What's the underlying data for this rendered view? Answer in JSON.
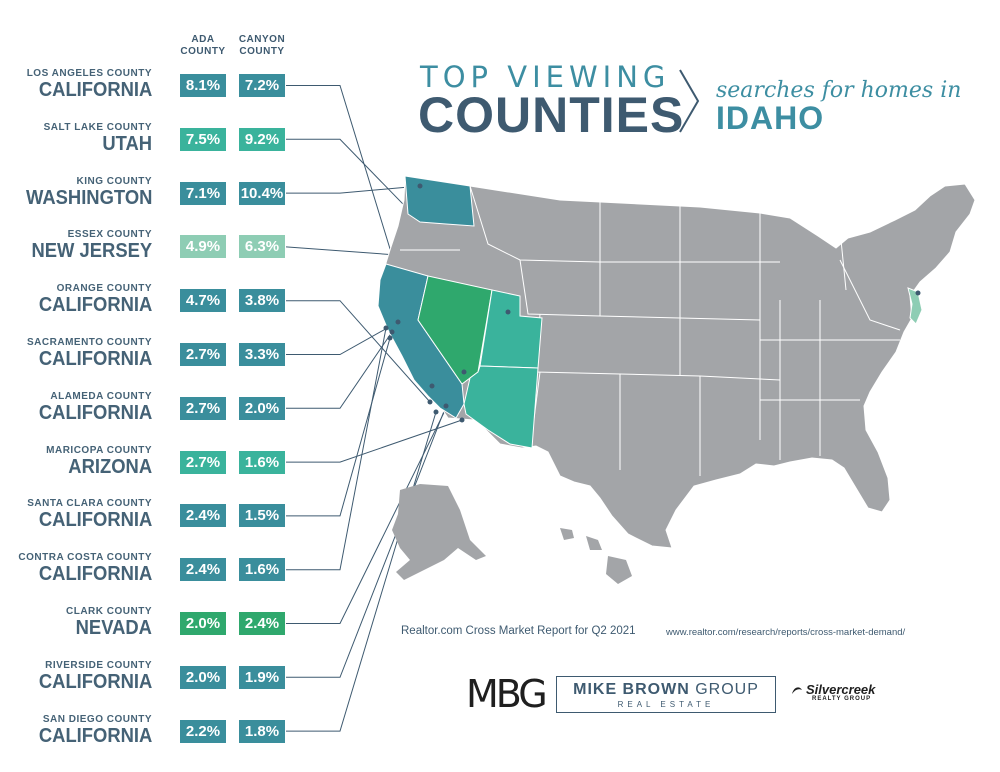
{
  "title": {
    "line1": "TOP VIEWING",
    "line2": "COUNTIES",
    "subtitle": "searches for homes in",
    "state": "IDAHO"
  },
  "columns": {
    "ada": "ADA COUNTY",
    "canyon": "CANYON COUNTY"
  },
  "colors": {
    "teal": "#3a8e9c",
    "aqua": "#3ab39c",
    "green": "#2fa86d",
    "mint": "#8ecdb4",
    "dark_text": "#3e5a70",
    "map_gray": "#a3a5a8"
  },
  "rows": [
    {
      "county": "LOS ANGELES COUNTY",
      "state": "CALIFORNIA",
      "ada": "8.1%",
      "canyon": "7.2%",
      "color": "#3a8e9c"
    },
    {
      "county": "SALT LAKE COUNTY",
      "state": "UTAH",
      "ada": "7.5%",
      "canyon": "9.2%",
      "color": "#3ab39c"
    },
    {
      "county": "KING COUNTY",
      "state": "WASHINGTON",
      "ada": "7.1%",
      "canyon": "10.4%",
      "color": "#3a8e9c"
    },
    {
      "county": "ESSEX COUNTY",
      "state": "NEW JERSEY",
      "ada": "4.9%",
      "canyon": "6.3%",
      "color": "#8ecdb4"
    },
    {
      "county": "ORANGE COUNTY",
      "state": "CALIFORNIA",
      "ada": "4.7%",
      "canyon": "3.8%",
      "color": "#3a8e9c"
    },
    {
      "county": "SACRAMENTO COUNTY",
      "state": "CALIFORNIA",
      "ada": "2.7%",
      "canyon": "3.3%",
      "color": "#3a8e9c"
    },
    {
      "county": "ALAMEDA COUNTY",
      "state": "CALIFORNIA",
      "ada": "2.7%",
      "canyon": "2.0%",
      "color": "#3a8e9c"
    },
    {
      "county": "MARICOPA COUNTY",
      "state": "ARIZONA",
      "ada": "2.7%",
      "canyon": "1.6%",
      "color": "#3ab39c"
    },
    {
      "county": "SANTA CLARA COUNTY",
      "state": "CALIFORNIA",
      "ada": "2.4%",
      "canyon": "1.5%",
      "color": "#3a8e9c"
    },
    {
      "county": "CONTRA COSTA COUNTY",
      "state": "CALIFORNIA",
      "ada": "2.4%",
      "canyon": "1.6%",
      "color": "#3a8e9c"
    },
    {
      "county": "CLARK COUNTY",
      "state": "NEVADA",
      "ada": "2.0%",
      "canyon": "2.4%",
      "color": "#2fa86d"
    },
    {
      "county": "RIVERSIDE COUNTY",
      "state": "CALIFORNIA",
      "ada": "2.0%",
      "canyon": "1.9%",
      "color": "#3a8e9c"
    },
    {
      "county": "SAN DIEGO COUNTY",
      "state": "CALIFORNIA",
      "ada": "2.2%",
      "canyon": "1.8%",
      "color": "#3a8e9c"
    }
  ],
  "footer": {
    "source": "Realtor.com Cross Market Report for Q2 2021",
    "url": "www.realtor.com/research/reports/cross-market-demand/"
  },
  "branding": {
    "mbg": "MBG",
    "mike_brown_bold": "MIKE BROWN",
    "mike_brown_rest": " GROUP",
    "real_estate": "REAL ESTATE",
    "silvercreek": "Silvercreek",
    "realty_group": "REALTY GROUP"
  }
}
